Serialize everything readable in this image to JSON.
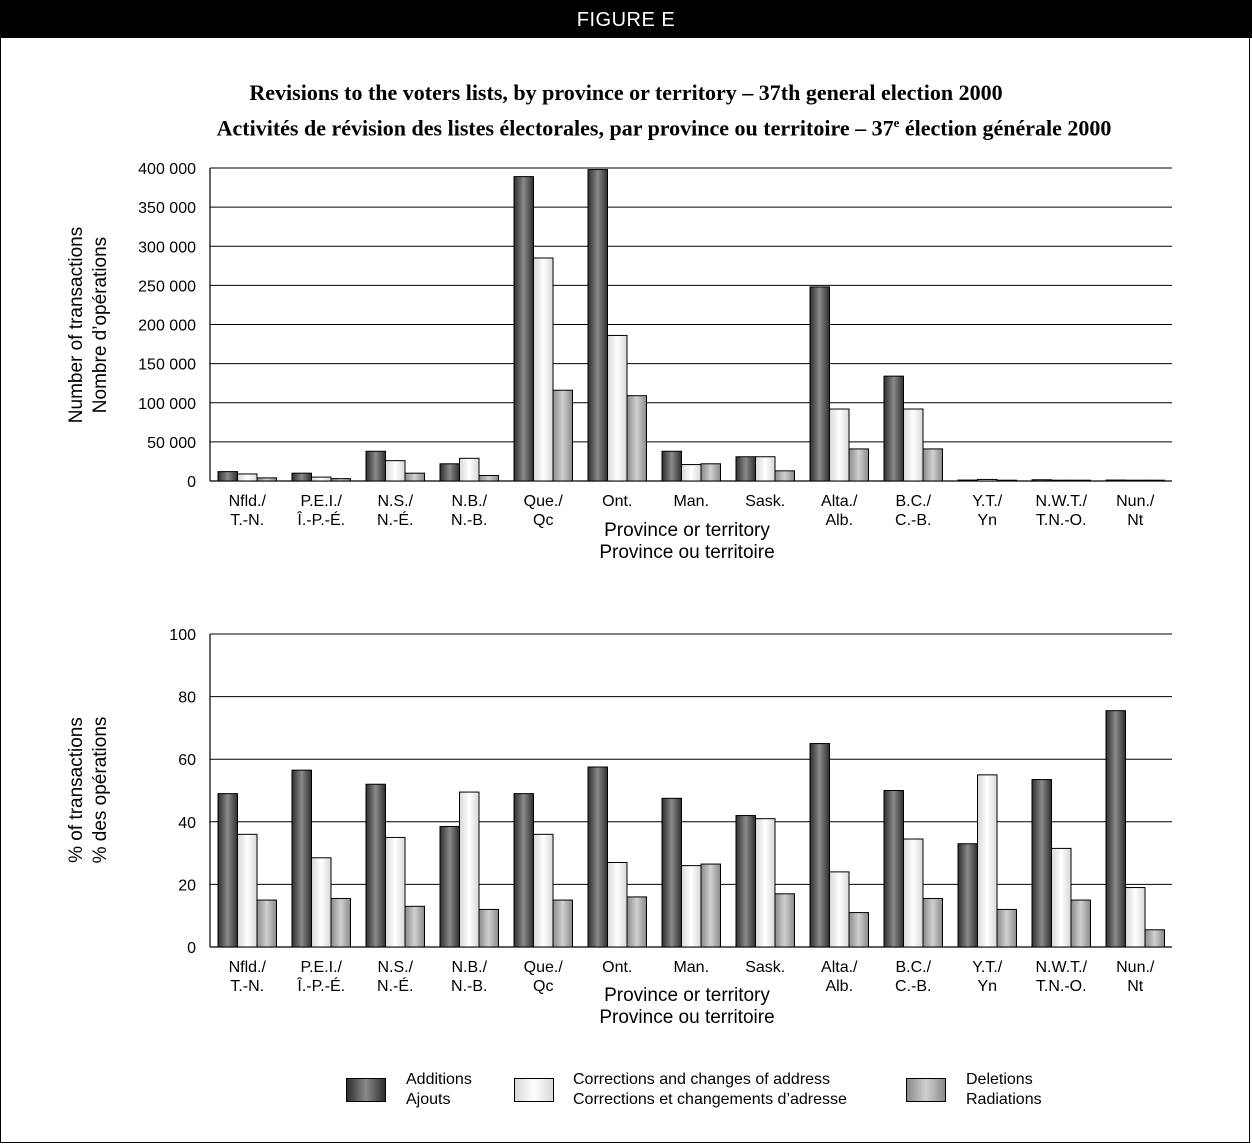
{
  "figure": {
    "label": "FIGURE E",
    "title_en": "Revisions to the voters lists, by province or territory – 37th general election 2000",
    "title_fr_pre": "Activités de révision des listes électorales, par province ou territoire – 37",
    "title_fr_sup": "e",
    "title_fr_post": " élection générale 2000"
  },
  "colors": {
    "additions": "#5a5a5a",
    "corrections": "#f2f2f2",
    "deletions": "#a8a8a8"
  },
  "legend": [
    {
      "line1": "Additions",
      "line2": "Ajouts",
      "series": "additions"
    },
    {
      "line1": "Corrections and changes of address",
      "line2": "Corrections et changements d’adresse",
      "series": "corrections"
    },
    {
      "line1": "Deletions",
      "line2": "Radiations",
      "series": "deletions"
    }
  ],
  "chart_data": [
    {
      "type": "bar",
      "ylabel": [
        "Number of transactions",
        "Nombre d’opérations"
      ],
      "xlabel": [
        "Province or territory",
        "Province ou territoire"
      ],
      "ylim": [
        0,
        400000
      ],
      "yticks": [
        0,
        50000,
        100000,
        150000,
        200000,
        250000,
        300000,
        350000,
        400000
      ],
      "ytick_labels": [
        "0",
        "50 000",
        "100 000",
        "150 000",
        "200 000",
        "250 000",
        "300 000",
        "350 000",
        "400 000"
      ],
      "grid": true,
      "categories": [
        [
          "Nfld./",
          "T.-N."
        ],
        [
          "P.E.I./",
          "Î.-P.-É."
        ],
        [
          "N.S./",
          "N.-É."
        ],
        [
          "N.B./",
          "N.-B."
        ],
        [
          "Que./",
          "Qc"
        ],
        [
          "Ont.",
          ""
        ],
        [
          "Man.",
          ""
        ],
        [
          "Sask.",
          ""
        ],
        [
          "Alta./",
          "Alb."
        ],
        [
          "B.C./",
          "C.-B."
        ],
        [
          "Y.T./",
          "Yn"
        ],
        [
          "N.W.T./",
          "T.N.-O."
        ],
        [
          "Nun./",
          "Nt"
        ]
      ],
      "series": [
        {
          "key": "additions",
          "values": [
            12000,
            10000,
            38000,
            22000,
            389000,
            398000,
            38000,
            31000,
            248000,
            134000,
            1200,
            1600,
            1200
          ]
        },
        {
          "key": "corrections",
          "values": [
            9000,
            5000,
            26000,
            29000,
            285000,
            186000,
            21000,
            31000,
            92000,
            92000,
            2000,
            1000,
            300
          ]
        },
        {
          "key": "deletions",
          "values": [
            4000,
            3000,
            10000,
            7000,
            116000,
            109000,
            22000,
            13000,
            41000,
            41000,
            500,
            400,
            100
          ]
        }
      ]
    },
    {
      "type": "bar",
      "ylabel": [
        "% of transactions",
        "% des opérations"
      ],
      "xlabel": [
        "Province or territory",
        "Province ou territoire"
      ],
      "ylim": [
        0,
        100
      ],
      "yticks": [
        0,
        20,
        40,
        60,
        80,
        100
      ],
      "ytick_labels": [
        "0",
        "20",
        "40",
        "60",
        "80",
        "100"
      ],
      "grid": true,
      "categories": [
        [
          "Nfld./",
          "T.-N."
        ],
        [
          "P.E.I./",
          "Î.-P.-É."
        ],
        [
          "N.S./",
          "N.-É."
        ],
        [
          "N.B./",
          "N.-B."
        ],
        [
          "Que./",
          "Qc"
        ],
        [
          "Ont.",
          ""
        ],
        [
          "Man.",
          ""
        ],
        [
          "Sask.",
          ""
        ],
        [
          "Alta./",
          "Alb."
        ],
        [
          "B.C./",
          "C.-B."
        ],
        [
          "Y.T./",
          "Yn"
        ],
        [
          "N.W.T./",
          "T.N.-O."
        ],
        [
          "Nun./",
          "Nt"
        ]
      ],
      "series": [
        {
          "key": "additions",
          "values": [
            49,
            56.5,
            52,
            38.5,
            49,
            57.5,
            47.5,
            42,
            65,
            50,
            33,
            53.5,
            75.5
          ]
        },
        {
          "key": "corrections",
          "values": [
            36,
            28.5,
            35,
            49.5,
            36,
            27,
            26,
            41,
            24,
            34.5,
            55,
            31.5,
            19
          ]
        },
        {
          "key": "deletions",
          "values": [
            15,
            15.5,
            13,
            12,
            15,
            16,
            26.5,
            17,
            11,
            15.5,
            12,
            15,
            5.5
          ]
        }
      ]
    }
  ]
}
